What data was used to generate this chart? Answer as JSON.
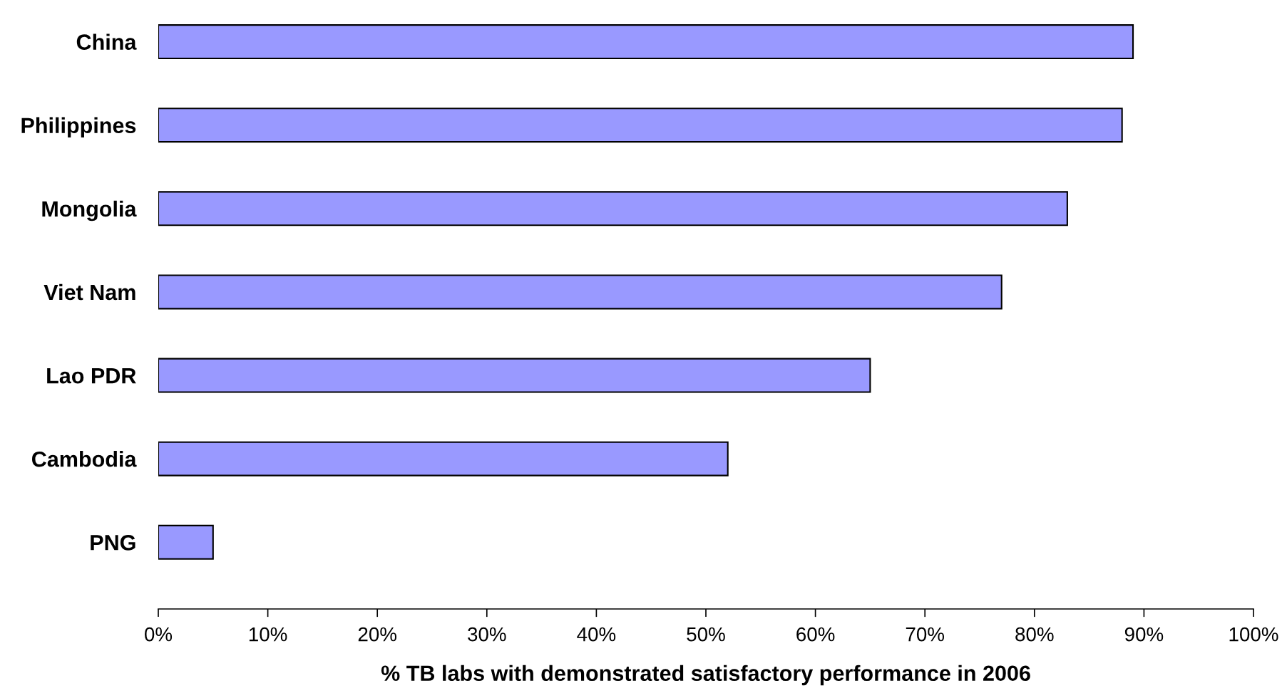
{
  "chart_data": {
    "type": "bar",
    "orientation": "horizontal",
    "xlabel": "% TB labs with demonstrated satisfactory performance in 2006",
    "categories": [
      "China",
      "Philippines",
      "Mongolia",
      "Viet Nam",
      "Lao PDR",
      "Cambodia",
      "PNG"
    ],
    "values": [
      89,
      88,
      83,
      77,
      65,
      52,
      5
    ],
    "color": "#9999ff",
    "xlim": [
      0,
      100
    ],
    "xticks": [
      {
        "value": 0,
        "label": "0%"
      },
      {
        "value": 10,
        "label": "10%"
      },
      {
        "value": 20,
        "label": "20%"
      },
      {
        "value": 30,
        "label": "30%"
      },
      {
        "value": 40,
        "label": "40%"
      },
      {
        "value": 50,
        "label": "50%"
      },
      {
        "value": 60,
        "label": "60%"
      },
      {
        "value": 70,
        "label": "70%"
      },
      {
        "value": 80,
        "label": "80%"
      },
      {
        "value": 90,
        "label": "90%"
      },
      {
        "value": 100,
        "label": "100%"
      }
    ],
    "grid": false,
    "legend": false
  }
}
